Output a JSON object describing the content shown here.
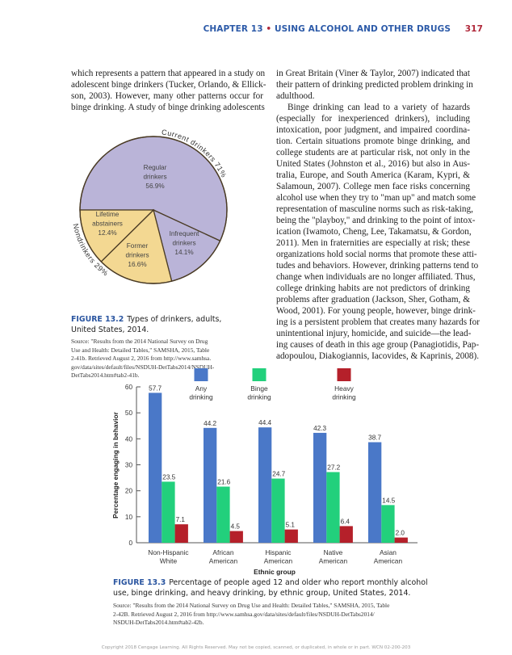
{
  "header": {
    "chapter": "CHAPTER 13",
    "bullet": "•",
    "title": "USING ALCOHOL AND OTHER DRUGS",
    "page_number": "317",
    "accent_color": "#2c5aa8",
    "red_color": "#b0283a"
  },
  "left_column": {
    "lines": [
      "which represents a pattern that appeared in a study on",
      "adolescent binge drinkers (Tucker, Orlando, & Ellick-",
      "son, 2003). However, many other patterns occur for",
      "binge drinking. A study of binge drinking adolescents"
    ]
  },
  "right_column": {
    "lines": [
      "in Great Britain (Viner & Taylor, 2007) indicated that",
      "their pattern of drinking predicted problem drinking in",
      "adulthood.",
      "Binge drinking can lead to a variety of hazards",
      "(especially for inexperienced drinkers), including",
      "intoxication, poor judgment, and impaired coordina-",
      "tion. Certain situations promote binge drinking, and",
      "college students are at particular risk, not only in the",
      "United States (Johnston et al., 2016) but also in Aus-",
      "tralia, Europe, and South America (Karam, Kypri, &",
      "Salamoun, 2007). College men face risks concerning",
      "alcohol use when they try to \"man up\" and match some",
      "representation of masculine norms such as risk-taking,",
      "being the \"playboy,\" and drinking to the point of intox-",
      "ication (Iwamoto, Cheng, Lee, Takamatsu, & Gordon,",
      "2011). Men in fraternities are especially at risk; these",
      "organizations hold social norms that promote these atti-",
      "tudes and behaviors. However, drinking patterns tend to",
      "change when individuals are no longer affiliated. Thus,",
      "college drinking habits are not predictors of drinking",
      "problems after graduation (Jackson, Sher, Gotham, &",
      "Wood, 2001). For young people, however, binge drink-",
      "ing is a persistent problem that creates many hazards for",
      "unintentional injury, homicide, and suicide—the lead-",
      "ing causes of death in this age group (Panagiotidis, Pap-",
      "adopoulou, Diakogiannis, Iacovides, & Kaprinis, 2008)."
    ]
  },
  "figure_13_2": {
    "label": "FIGURE 13.2",
    "caption_line1": "Types of drinkers, adults,",
    "caption_line2": "United States, 2014.",
    "source_lines": [
      "Source: \"Results from the 2014 National Survey on Drug",
      "Use and Health: Detailed Tables,\" SAMSHA, 2015, Table",
      "2-41b. Retrieved August 2, 2016 from http://www.samhsa.",
      "gov/data/sites/default/files/NSDUH-DetTabs2014/NSDUH-",
      "DetTabs2014.htm#tab2-41b."
    ]
  },
  "figure_13_3": {
    "label": "FIGURE 13.3",
    "caption_line1": "Percentage of people aged 12 and older who report monthly alcohol",
    "caption_line2": "use, binge drinking, and heavy drinking, by ethnic group, United States, 2014.",
    "source_lines": [
      "Source: \"Results from the 2014 National Survey on Drug Use and Health: Detailed Tables,\" SAMSHA, 2015, Table",
      "2-42B. Retrieved August 2, 2016 from http://www.samhsa.gov/data/sites/default/files/NSDUH-DetTabs2014/",
      "NSDUH-DetTabs2014.htm#tab2-42b."
    ]
  },
  "chart_data": [
    {
      "type": "pie",
      "slices": [
        {
          "label": [
            "Regular",
            "drinkers",
            "56.9%"
          ],
          "value": 56.9,
          "color": "#bab4d8",
          "group": "current"
        },
        {
          "label": [
            "Infrequent",
            "drinkers",
            "14.1%"
          ],
          "value": 14.1,
          "color": "#bab4d8",
          "group": "current"
        },
        {
          "label": [
            "Former",
            "drinkers",
            "16.6%"
          ],
          "value": 16.6,
          "color": "#f3d892",
          "group": "non"
        },
        {
          "label": [
            "Lifetime",
            "abstainers",
            "12.4%"
          ],
          "value": 12.4,
          "color": "#f3d892",
          "group": "non"
        }
      ],
      "group_labels": {
        "current": "Current drinkers",
        "current_value": "71%",
        "non": "Nondrinkers",
        "non_value": "29%"
      }
    },
    {
      "type": "bar",
      "categories": [
        [
          "Non-Hispanic",
          "White"
        ],
        [
          "African",
          "American"
        ],
        [
          "Hispanic",
          "American"
        ],
        [
          "Native",
          "American"
        ],
        [
          "Asian",
          "American"
        ]
      ],
      "series": [
        {
          "name": [
            "Any",
            "drinking"
          ],
          "values": [
            57.7,
            44.2,
            44.4,
            42.3,
            38.7
          ],
          "labels": [
            "57.7",
            "44.2",
            "44.4",
            "42.3",
            "38.7"
          ],
          "color": "#4a78c8"
        },
        {
          "name": [
            "Binge",
            "drinking"
          ],
          "values": [
            23.5,
            21.6,
            24.7,
            27.2,
            14.5
          ],
          "labels": [
            "23.5",
            "21.6",
            "24.7",
            "27.2",
            "14.5"
          ],
          "color": "#22d07c"
        },
        {
          "name": [
            "Heavy",
            "drinking"
          ],
          "values": [
            7.1,
            4.5,
            5.1,
            6.4,
            2.0
          ],
          "labels": [
            "7.1",
            "4.5",
            "5.1",
            "6.4",
            "2.0"
          ],
          "color": "#b5202a"
        }
      ],
      "xlabel": "Ethnic group",
      "ylabel": "Percentage engaging in behavior",
      "ylim": [
        0,
        60
      ],
      "yticks": [
        "0",
        "10",
        "20",
        "30",
        "40",
        "50",
        "60"
      ],
      "legend": "top",
      "grid": false
    }
  ],
  "footer": {
    "copyright": "Copyright 2018 Cengage Learning. All Rights Reserved. May not be copied, scanned, or duplicated, in whole or in part. WCN 02-200-203"
  }
}
